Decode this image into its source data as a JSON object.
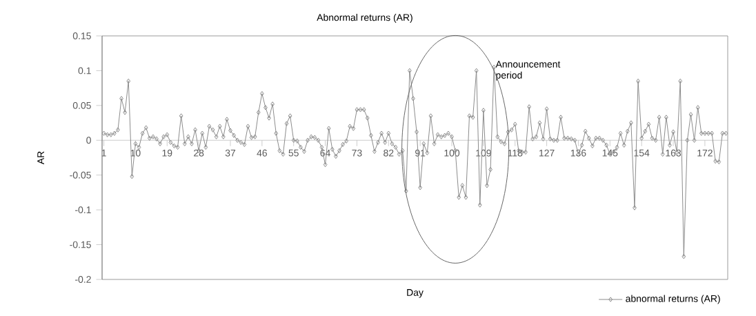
{
  "chart_data": {
    "type": "line",
    "title": "Abnormal returns (AR)",
    "xlabel": "Day",
    "ylabel": "AR",
    "x": [
      1,
      2,
      3,
      4,
      5,
      6,
      7,
      8,
      9,
      10,
      11,
      12,
      13,
      14,
      15,
      16,
      17,
      18,
      19,
      20,
      21,
      22,
      23,
      24,
      25,
      26,
      27,
      28,
      29,
      30,
      31,
      32,
      33,
      34,
      35,
      36,
      37,
      38,
      39,
      40,
      41,
      42,
      43,
      44,
      45,
      46,
      47,
      48,
      49,
      50,
      51,
      52,
      53,
      54,
      55,
      56,
      57,
      58,
      59,
      60,
      61,
      62,
      63,
      64,
      65,
      66,
      67,
      68,
      69,
      70,
      71,
      72,
      73,
      74,
      75,
      76,
      77,
      78,
      79,
      80,
      81,
      82,
      83,
      84,
      85,
      86,
      87,
      88,
      89,
      90,
      91,
      92,
      93,
      94,
      95,
      96,
      97,
      98,
      99,
      100,
      101,
      102,
      103,
      104,
      105,
      106,
      107,
      108,
      109,
      110,
      111,
      112,
      113,
      114,
      115,
      116,
      117,
      118,
      119,
      120,
      121,
      122,
      123,
      124,
      125,
      126,
      127,
      128,
      129,
      130,
      131,
      132,
      133,
      134,
      135,
      136,
      137,
      138,
      139,
      140,
      141,
      142,
      143,
      144,
      145,
      146,
      147,
      148,
      149,
      150,
      151,
      152,
      153,
      154,
      155,
      156,
      157,
      158,
      159,
      160,
      161,
      162,
      163,
      164,
      165,
      166,
      167,
      168,
      169,
      170,
      171,
      172,
      173,
      174,
      175,
      176,
      177,
      178
    ],
    "series": [
      {
        "name": "abnormal returns (AR)",
        "color": "#8c8c8c",
        "values": [
          0.01,
          0.008,
          0.008,
          0.01,
          0.015,
          0.06,
          0.04,
          0.085,
          -0.052,
          -0.005,
          -0.01,
          0.01,
          0.018,
          0.003,
          0.005,
          0.002,
          -0.005,
          0.005,
          0.008,
          -0.003,
          -0.008,
          -0.01,
          0.035,
          -0.005,
          0.005,
          -0.005,
          0.015,
          -0.015,
          0.01,
          -0.01,
          0.02,
          0.015,
          0.005,
          0.02,
          0.005,
          0.03,
          0.014,
          0.007,
          0,
          -0.003,
          -0.006,
          0.02,
          0.004,
          0.005,
          0.04,
          0.067,
          0.047,
          0.032,
          0.052,
          0.01,
          -0.015,
          -0.02,
          0.024,
          0.035,
          0,
          -0.001,
          -0.01,
          -0.016,
          0,
          0.005,
          0.004,
          0,
          -0.01,
          -0.035,
          0.017,
          -0.013,
          -0.023,
          -0.015,
          -0.006,
          -0.001,
          0.02,
          0.017,
          0.044,
          0.044,
          0.044,
          0.032,
          0.007,
          -0.016,
          -0.003,
          0.01,
          -0.003,
          0.01,
          -0.005,
          -0.01,
          -0.02,
          -0.015,
          -0.073,
          0.1,
          0.06,
          0.012,
          -0.068,
          -0.005,
          -0.018,
          0.035,
          -0.005,
          0.008,
          0.005,
          0.007,
          0.01,
          0.005,
          -0.015,
          -0.082,
          -0.065,
          -0.082,
          0.035,
          0.033,
          0.1,
          -0.093,
          0.043,
          -0.065,
          -0.042,
          0.105,
          0.005,
          -0.002,
          -0.005,
          0.012,
          0.015,
          0.023,
          -0.015,
          -0.017,
          -0.017,
          0.048,
          0.002,
          0.005,
          0.025,
          0.002,
          0.045,
          0.002,
          0,
          0,
          0.033,
          0.003,
          0.003,
          0.002,
          0,
          -0.02,
          -0.007,
          0.013,
          0.003,
          -0.008,
          0.003,
          0.003,
          0,
          -0.007,
          -0.02,
          -0.017,
          -0.01,
          0.01,
          -0.007,
          0.013,
          0.025,
          -0.097,
          0.085,
          0.003,
          0.013,
          0.023,
          0.003,
          0,
          0.033,
          -0.02,
          0.033,
          -0.007,
          0.012,
          -0.017,
          0.085,
          -0.167,
          0,
          0.037,
          0,
          0.047,
          0.01,
          0.01,
          0.01,
          0.01,
          -0.03,
          -0.031,
          0.01,
          0.01
        ]
      }
    ],
    "xlim": [
      0.5,
      178.5
    ],
    "xticks": [
      1,
      10,
      19,
      28,
      37,
      46,
      55,
      64,
      73,
      82,
      91,
      100,
      109,
      118,
      127,
      136,
      145,
      154,
      163,
      172
    ],
    "ylim": [
      -0.2,
      0.15
    ],
    "yticks": [
      0.15,
      0.1,
      0.05,
      0,
      -0.05,
      -0.1,
      -0.15,
      -0.2
    ],
    "marker": "diamond",
    "legend": "bottom right",
    "annotations": [
      {
        "text": "Announcement period",
        "x": 112,
        "y": 0.1
      }
    ]
  }
}
